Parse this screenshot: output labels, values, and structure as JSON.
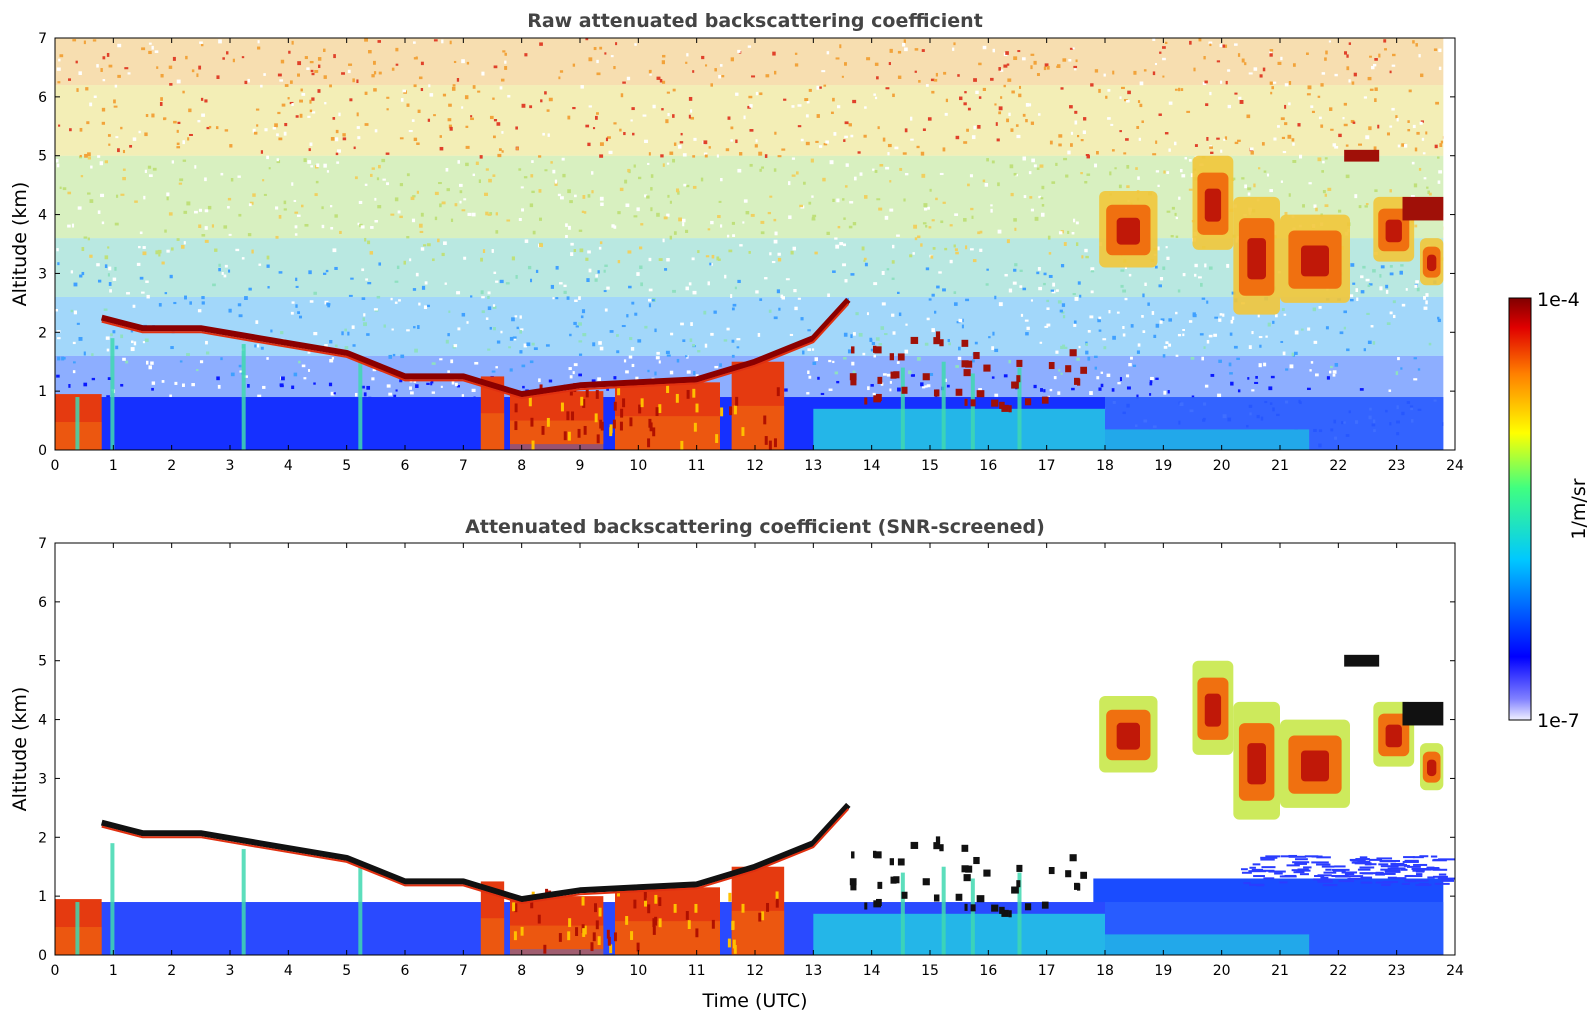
{
  "chart_data": [
    {
      "type": "heatmap",
      "title": "Raw attenuated backscattering coefficient",
      "xlabel": "",
      "ylabel": "Altitude (km)",
      "xlim": [
        0,
        24
      ],
      "ylim": [
        0,
        7
      ],
      "x_ticks": [
        0,
        1,
        2,
        3,
        4,
        5,
        6,
        7,
        8,
        9,
        10,
        11,
        12,
        13,
        14,
        15,
        16,
        17,
        18,
        19,
        20,
        21,
        22,
        23,
        24
      ],
      "y_ticks": [
        0,
        1,
        2,
        3,
        4,
        5,
        6,
        7
      ],
      "screened": false,
      "cloud_base_layer": [
        [
          0.8,
          2.25
        ],
        [
          1.5,
          2.07
        ],
        [
          2.5,
          2.07
        ],
        [
          3.5,
          1.9
        ],
        [
          5,
          1.65
        ],
        [
          6,
          1.25
        ],
        [
          7,
          1.25
        ],
        [
          8,
          0.95
        ],
        [
          9,
          1.1
        ],
        [
          10,
          1.15
        ],
        [
          11,
          1.2
        ],
        [
          12,
          1.5
        ],
        [
          13,
          1.9
        ],
        [
          13.6,
          2.55
        ]
      ],
      "high_cloud_patches": [
        {
          "t_start": 17.9,
          "t_end": 18.9,
          "z_bottom": 3.1,
          "z_top": 4.4
        },
        {
          "t_start": 19.5,
          "t_end": 20.2,
          "z_bottom": 3.4,
          "z_top": 5.0
        },
        {
          "t_start": 20.2,
          "t_end": 21.0,
          "z_bottom": 2.3,
          "z_top": 4.3
        },
        {
          "t_start": 21.0,
          "t_end": 22.2,
          "z_bottom": 2.5,
          "z_top": 4.0
        },
        {
          "t_start": 22.6,
          "t_end": 23.3,
          "z_bottom": 3.2,
          "z_top": 4.3
        },
        {
          "t_start": 23.4,
          "t_end": 23.8,
          "z_bottom": 2.8,
          "z_top": 3.6
        },
        {
          "t_start": 22.1,
          "t_end": 22.7,
          "z_bottom": 4.9,
          "z_top": 5.1
        },
        {
          "t_start": 23.1,
          "t_end": 23.8,
          "z_bottom": 3.9,
          "z_top": 4.3
        }
      ],
      "boundary_layer_top_km": 1.0
    },
    {
      "type": "heatmap",
      "title": "Attenuated backscattering coefficient (SNR-screened)",
      "xlabel": "Time (UTC)",
      "ylabel": "Altitude (km)",
      "xlim": [
        0,
        24
      ],
      "ylim": [
        0,
        7
      ],
      "x_ticks": [
        0,
        1,
        2,
        3,
        4,
        5,
        6,
        7,
        8,
        9,
        10,
        11,
        12,
        13,
        14,
        15,
        16,
        17,
        18,
        19,
        20,
        21,
        22,
        23,
        24
      ],
      "y_ticks": [
        0,
        1,
        2,
        3,
        4,
        5,
        6,
        7
      ],
      "screened": true,
      "cloud_base_layer": [
        [
          0.8,
          2.25
        ],
        [
          1.5,
          2.07
        ],
        [
          2.5,
          2.07
        ],
        [
          3.5,
          1.9
        ],
        [
          5,
          1.65
        ],
        [
          6,
          1.25
        ],
        [
          7,
          1.25
        ],
        [
          8,
          0.95
        ],
        [
          9,
          1.1
        ],
        [
          10,
          1.15
        ],
        [
          11,
          1.2
        ],
        [
          12,
          1.5
        ],
        [
          13,
          1.9
        ],
        [
          13.6,
          2.55
        ]
      ],
      "high_cloud_patches": [
        {
          "t_start": 17.9,
          "t_end": 18.9,
          "z_bottom": 3.1,
          "z_top": 4.4
        },
        {
          "t_start": 19.5,
          "t_end": 20.2,
          "z_bottom": 3.4,
          "z_top": 5.0
        },
        {
          "t_start": 20.2,
          "t_end": 21.0,
          "z_bottom": 2.3,
          "z_top": 4.3
        },
        {
          "t_start": 21.0,
          "t_end": 22.2,
          "z_bottom": 2.5,
          "z_top": 4.0
        },
        {
          "t_start": 22.6,
          "t_end": 23.3,
          "z_bottom": 3.2,
          "z_top": 4.3
        },
        {
          "t_start": 23.4,
          "t_end": 23.8,
          "z_bottom": 2.8,
          "z_top": 3.6
        },
        {
          "t_start": 22.1,
          "t_end": 22.7,
          "z_bottom": 4.9,
          "z_top": 5.1
        },
        {
          "t_start": 23.1,
          "t_end": 23.8,
          "z_bottom": 3.9,
          "z_top": 4.3
        }
      ],
      "boundary_layer_top_km": 1.0
    }
  ],
  "colorbar": {
    "label": "1/m/sr",
    "min_label": "1e-7",
    "max_label": "1e-4",
    "scale": "log",
    "colormap": [
      "#f0f0ff",
      "#0000ff",
      "#00c8ff",
      "#40ff80",
      "#ffff00",
      "#ff8000",
      "#e00000",
      "#800000"
    ]
  }
}
